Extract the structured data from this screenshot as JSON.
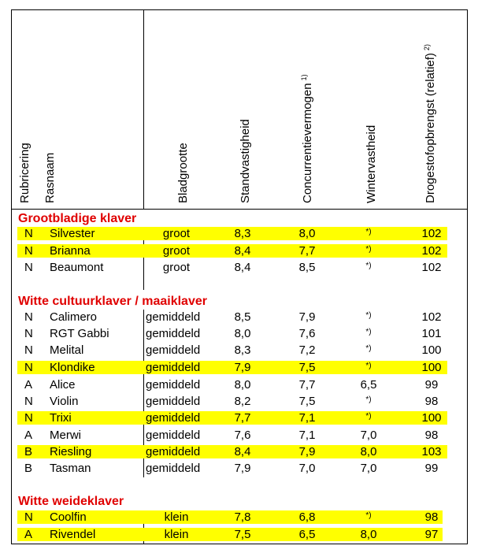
{
  "headers": {
    "rubricering": "Rubricering",
    "rasnaam": "Rasnaam",
    "bladgrootte": "Bladgrootte",
    "standvastigheid": "Standvastigheid",
    "concurrentievermogen": "Concurrentievermogen",
    "concurrentievermogen_note": "1)",
    "wintervastheid": "Wintervastheid",
    "drogestofopbrengst": "Drogestofopbrengst (relatief)",
    "drogestofopbrengst_note": "2)"
  },
  "colors": {
    "section": "#e00000",
    "highlight": "#ffff00"
  },
  "sections": [
    {
      "title": "Grootbladige klaver",
      "rows": [
        {
          "rub": "N",
          "naam": "Silvester",
          "blad": "groot",
          "stand": "8,3",
          "conc": "8,0",
          "winter": "*)",
          "droge": "102",
          "highlight": true
        },
        {
          "rub": "N",
          "naam": "Brianna",
          "blad": "groot",
          "stand": "8,4",
          "conc": "7,7",
          "winter": "*)",
          "droge": "102",
          "highlight": true
        },
        {
          "rub": "N",
          "naam": "Beaumont",
          "blad": "groot",
          "stand": "8,4",
          "conc": "8,5",
          "winter": "*)",
          "droge": "102",
          "highlight": false
        }
      ]
    },
    {
      "title": "Witte cultuurklaver / maaiklaver",
      "rows": [
        {
          "rub": "N",
          "naam": "Calimero",
          "blad": "gemiddeld",
          "stand": "8,5",
          "conc": "7,9",
          "winter": "*)",
          "droge": "102",
          "highlight": false
        },
        {
          "rub": "N",
          "naam": "RGT Gabbi",
          "blad": "gemiddeld",
          "stand": "8,0",
          "conc": "7,6",
          "winter": "*)",
          "droge": "101",
          "highlight": false
        },
        {
          "rub": "N",
          "naam": "Melital",
          "blad": "gemiddeld",
          "stand": "8,3",
          "conc": "7,2",
          "winter": "*)",
          "droge": "100",
          "highlight": false
        },
        {
          "rub": "N",
          "naam": "Klondike",
          "blad": "gemiddeld",
          "stand": "7,9",
          "conc": "7,5",
          "winter": "*)",
          "droge": "100",
          "highlight": true
        },
        {
          "rub": "A",
          "naam": "Alice",
          "blad": "gemiddeld",
          "stand": "8,0",
          "conc": "7,7",
          "winter": "6,5",
          "droge": "99",
          "highlight": false
        },
        {
          "rub": "N",
          "naam": "Violin",
          "blad": "gemiddeld",
          "stand": "8,2",
          "conc": "7,5",
          "winter": "*)",
          "droge": "98",
          "highlight": false
        },
        {
          "rub": "N",
          "naam": "Trixi",
          "blad": "gemiddeld",
          "stand": "7,7",
          "conc": "7,1",
          "winter": "*)",
          "droge": "100",
          "highlight": true
        },
        {
          "rub": "A",
          "naam": "Merwi",
          "blad": "gemiddeld",
          "stand": "7,6",
          "conc": "7,1",
          "winter": "7,0",
          "droge": "98",
          "highlight": false
        },
        {
          "rub": "B",
          "naam": "Riesling",
          "blad": "gemiddeld",
          "stand": "8,4",
          "conc": "7,9",
          "winter": "8,0",
          "droge": "103",
          "highlight": true
        },
        {
          "rub": "B",
          "naam": "Tasman",
          "blad": "gemiddeld",
          "stand": "7,9",
          "conc": "7,0",
          "winter": "7,0",
          "droge": "99",
          "highlight": false
        }
      ]
    },
    {
      "title": "Witte weideklaver",
      "rows": [
        {
          "rub": "N",
          "naam": "Coolfin",
          "blad": "klein",
          "stand": "7,8",
          "conc": "6,8",
          "winter": "*)",
          "droge": "98",
          "highlight": true
        },
        {
          "rub": "A",
          "naam": "Rivendel",
          "blad": "klein",
          "stand": "7,5",
          "conc": "6,5",
          "winter": "8,0",
          "droge": "97",
          "highlight": true
        }
      ]
    }
  ]
}
